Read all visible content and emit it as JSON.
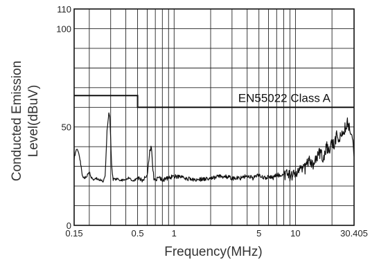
{
  "chart_data": {
    "type": "line",
    "title": "",
    "xlabel": "Frequency(MHz)",
    "ylabel_line1": "Conducted Emission",
    "ylabel_line2": "Level(dBuV)",
    "x_scale": "log",
    "xlim": [
      0.15,
      30.405
    ],
    "ylim": [
      0,
      110
    ],
    "grid": true,
    "x_ticks": [
      {
        "value": 0.15,
        "label": "0.15"
      },
      {
        "value": 0.5,
        "label": "0.5"
      },
      {
        "value": 1,
        "label": "1"
      },
      {
        "value": 5,
        "label": "5"
      },
      {
        "value": 10,
        "label": "10"
      },
      {
        "value": 30.405,
        "label": "30.405"
      }
    ],
    "y_ticks": [
      {
        "value": 0,
        "label": "0"
      },
      {
        "value": 50,
        "label": "50"
      },
      {
        "value": 100,
        "label": "100"
      },
      {
        "value": 110,
        "label": "110"
      }
    ],
    "x_gridlines": [
      0.15,
      0.2,
      0.3,
      0.4,
      0.5,
      0.6,
      0.7,
      0.8,
      0.9,
      1,
      2,
      3,
      4,
      5,
      6,
      7,
      8,
      9,
      10,
      20,
      30.405
    ],
    "y_gridlines": [
      0,
      10,
      20,
      30,
      40,
      50,
      60,
      70,
      80,
      90,
      100,
      110
    ],
    "limit_line": {
      "label": "EN55022 Class A",
      "points": [
        [
          0.15,
          66
        ],
        [
          0.5,
          66
        ],
        [
          0.5,
          60
        ],
        [
          30.405,
          60
        ]
      ],
      "color": "#111111"
    },
    "series": [
      {
        "color": "#111111",
        "x": [
          0.15,
          0.155,
          0.16,
          0.165,
          0.17,
          0.175,
          0.18,
          0.19,
          0.2,
          0.21,
          0.22,
          0.23,
          0.24,
          0.25,
          0.26,
          0.27,
          0.28,
          0.29,
          0.295,
          0.3,
          0.305,
          0.31,
          0.315,
          0.32,
          0.33,
          0.34,
          0.36,
          0.38,
          0.4,
          0.42,
          0.45,
          0.48,
          0.5,
          0.55,
          0.6,
          0.63,
          0.65,
          0.66,
          0.68,
          0.7,
          0.75,
          0.8,
          0.9,
          1.0,
          1.2,
          1.5,
          2.0,
          2.5,
          3.0,
          3.5,
          4.0,
          4.5,
          5.0,
          5.5,
          6.0,
          6.5,
          7.0,
          7.5,
          8.0,
          9.0,
          10.0,
          11.0,
          12.0,
          13.0,
          14.0,
          15.0,
          16.0,
          17.0,
          18.0,
          19.0,
          20.0,
          21.0,
          22.0,
          23.0,
          24.0,
          25.0,
          26.0,
          27.0,
          28.0,
          29.0,
          30.0,
          30.405
        ],
        "y": [
          34,
          38,
          39,
          36,
          31,
          26,
          24,
          25,
          27,
          24,
          23,
          24,
          23,
          23,
          22,
          25,
          48,
          57,
          55,
          44,
          32,
          26,
          23,
          24,
          23,
          24,
          23,
          23,
          23,
          24,
          23,
          23,
          24,
          23,
          25,
          38,
          40,
          33,
          24,
          23,
          24,
          23,
          24,
          25,
          24,
          23,
          24,
          25,
          24,
          24,
          25,
          24,
          26,
          24,
          25,
          24,
          26,
          25,
          26,
          25,
          27,
          30,
          29,
          33,
          31,
          35,
          37,
          34,
          40,
          38,
          42,
          40,
          47,
          44,
          46,
          48,
          50,
          53,
          48,
          45,
          42,
          35
        ]
      }
    ]
  }
}
